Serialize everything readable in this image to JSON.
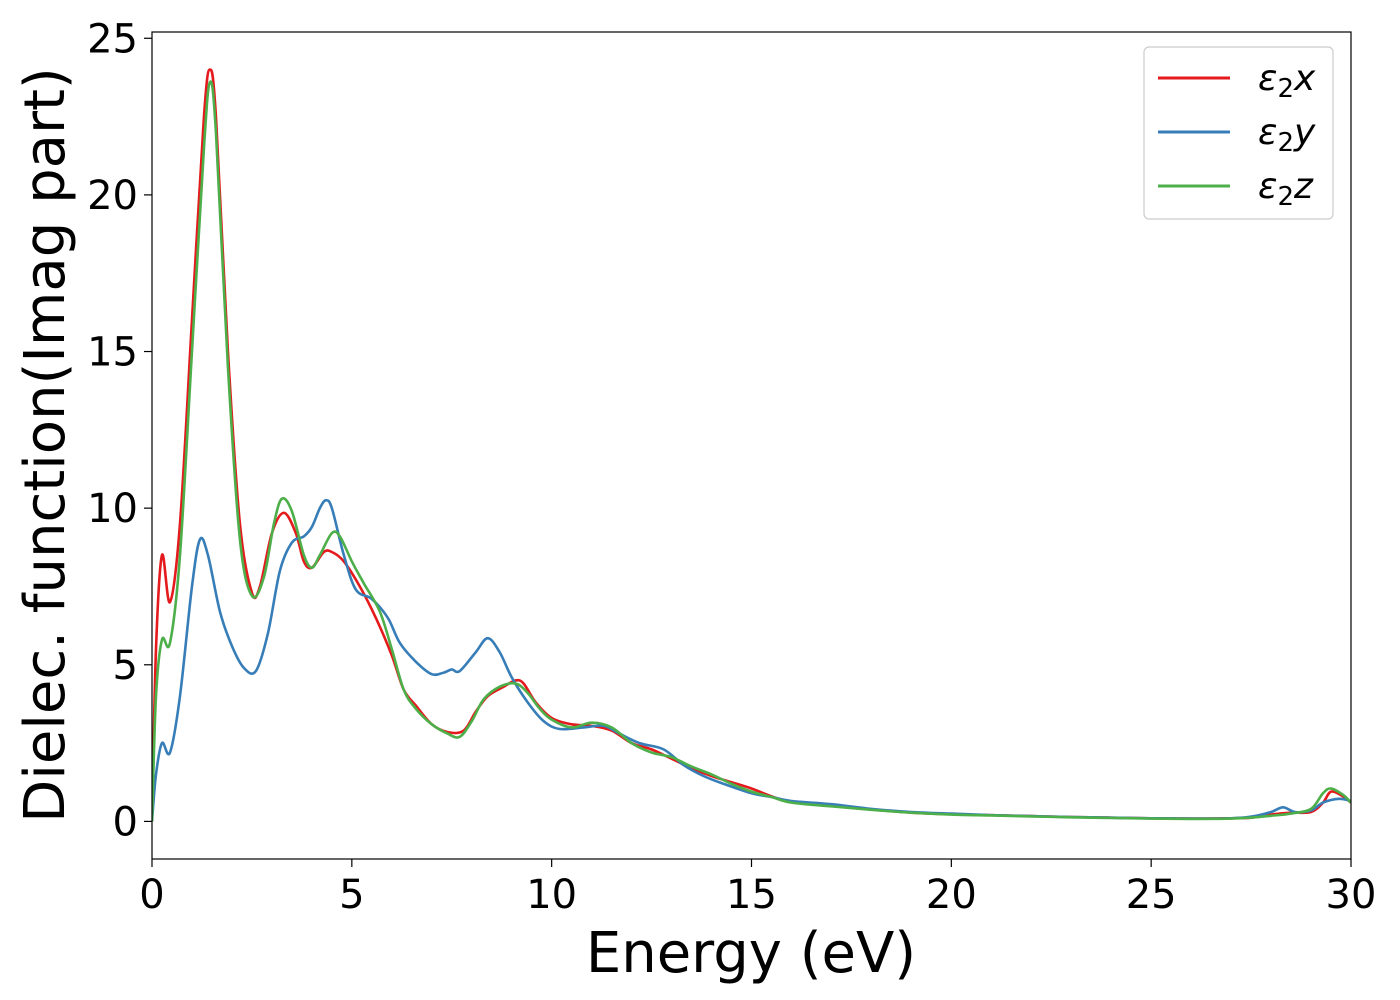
{
  "chart_data": {
    "type": "line",
    "xlabel": "Energy (eV)",
    "ylabel": "Dielec. function(Imag part)",
    "xlim": [
      0,
      30
    ],
    "ylim": [
      -1.2,
      25.2
    ],
    "xticks": [
      "0",
      "5",
      "10",
      "15",
      "20",
      "25",
      "30"
    ],
    "yticks": [
      "0",
      "5",
      "10",
      "15",
      "20",
      "25"
    ],
    "grid": false,
    "legend_position": "top-right",
    "series": [
      {
        "name": "ε₂x",
        "legend_base": "ε",
        "legend_sub": "2",
        "legend_var": "x",
        "color": "#e41a1c",
        "points": [
          [
            0,
            0
          ],
          [
            0.1,
            5.5
          ],
          [
            0.25,
            8.5
          ],
          [
            0.45,
            7.0
          ],
          [
            0.7,
            9.5
          ],
          [
            1.0,
            16
          ],
          [
            1.3,
            22.5
          ],
          [
            1.45,
            24.0
          ],
          [
            1.6,
            22.5
          ],
          [
            1.9,
            15
          ],
          [
            2.2,
            9.5
          ],
          [
            2.5,
            7.3
          ],
          [
            2.7,
            7.5
          ],
          [
            3.0,
            9.2
          ],
          [
            3.3,
            9.85
          ],
          [
            3.6,
            9.2
          ],
          [
            3.8,
            8.3
          ],
          [
            4.0,
            8.1
          ],
          [
            4.3,
            8.6
          ],
          [
            4.5,
            8.6
          ],
          [
            4.8,
            8.3
          ],
          [
            5.2,
            7.5
          ],
          [
            5.6,
            6.5
          ],
          [
            6.0,
            5.3
          ],
          [
            6.3,
            4.2
          ],
          [
            6.6,
            3.7
          ],
          [
            7.0,
            3.1
          ],
          [
            7.4,
            2.85
          ],
          [
            7.8,
            2.9
          ],
          [
            8.1,
            3.5
          ],
          [
            8.4,
            4.0
          ],
          [
            8.8,
            4.3
          ],
          [
            9.1,
            4.5
          ],
          [
            9.3,
            4.4
          ],
          [
            9.6,
            3.8
          ],
          [
            10.0,
            3.3
          ],
          [
            10.5,
            3.1
          ],
          [
            11.0,
            3.05
          ],
          [
            11.5,
            2.9
          ],
          [
            12.0,
            2.5
          ],
          [
            12.5,
            2.3
          ],
          [
            13.0,
            2.0
          ],
          [
            13.5,
            1.7
          ],
          [
            14.0,
            1.45
          ],
          [
            14.5,
            1.25
          ],
          [
            15.0,
            1.05
          ],
          [
            15.5,
            0.8
          ],
          [
            16,
            0.62
          ],
          [
            17,
            0.5
          ],
          [
            18,
            0.38
          ],
          [
            19,
            0.28
          ],
          [
            20,
            0.23
          ],
          [
            21,
            0.2
          ],
          [
            22,
            0.17
          ],
          [
            23,
            0.14
          ],
          [
            24,
            0.12
          ],
          [
            25,
            0.1
          ],
          [
            26,
            0.09
          ],
          [
            27,
            0.1
          ],
          [
            27.5,
            0.12
          ],
          [
            28,
            0.22
          ],
          [
            28.5,
            0.28
          ],
          [
            29,
            0.3
          ],
          [
            29.3,
            0.6
          ],
          [
            29.5,
            0.95
          ],
          [
            29.8,
            0.8
          ],
          [
            30,
            0.6
          ]
        ]
      },
      {
        "name": "ε₂y",
        "legend_base": "ε",
        "legend_sub": "2",
        "legend_var": "y",
        "color": "#377eb8",
        "points": [
          [
            0,
            0
          ],
          [
            0.1,
            1.5
          ],
          [
            0.25,
            2.5
          ],
          [
            0.45,
            2.2
          ],
          [
            0.7,
            4.0
          ],
          [
            1.0,
            7.5
          ],
          [
            1.2,
            9.0
          ],
          [
            1.4,
            8.5
          ],
          [
            1.7,
            6.7
          ],
          [
            2.0,
            5.6
          ],
          [
            2.3,
            4.9
          ],
          [
            2.6,
            4.8
          ],
          [
            2.9,
            6.0
          ],
          [
            3.2,
            8.0
          ],
          [
            3.5,
            8.9
          ],
          [
            3.8,
            9.1
          ],
          [
            4.0,
            9.4
          ],
          [
            4.2,
            10.0
          ],
          [
            4.35,
            10.25
          ],
          [
            4.5,
            10.0
          ],
          [
            4.8,
            8.5
          ],
          [
            5.1,
            7.4
          ],
          [
            5.5,
            7.1
          ],
          [
            5.9,
            6.5
          ],
          [
            6.2,
            5.7
          ],
          [
            6.6,
            5.1
          ],
          [
            7.0,
            4.7
          ],
          [
            7.3,
            4.75
          ],
          [
            7.5,
            4.85
          ],
          [
            7.7,
            4.8
          ],
          [
            8.1,
            5.4
          ],
          [
            8.4,
            5.85
          ],
          [
            8.7,
            5.4
          ],
          [
            9.0,
            4.6
          ],
          [
            9.4,
            3.8
          ],
          [
            9.8,
            3.2
          ],
          [
            10.2,
            2.95
          ],
          [
            10.8,
            3.0
          ],
          [
            11.3,
            3.05
          ],
          [
            11.7,
            2.8
          ],
          [
            12.2,
            2.5
          ],
          [
            12.8,
            2.3
          ],
          [
            13.3,
            1.8
          ],
          [
            13.8,
            1.45
          ],
          [
            14.3,
            1.2
          ],
          [
            15.0,
            0.9
          ],
          [
            15.5,
            0.78
          ],
          [
            16,
            0.65
          ],
          [
            17,
            0.55
          ],
          [
            18,
            0.4
          ],
          [
            19,
            0.3
          ],
          [
            20,
            0.25
          ],
          [
            21,
            0.2
          ],
          [
            22,
            0.17
          ],
          [
            23,
            0.14
          ],
          [
            24,
            0.12
          ],
          [
            25,
            0.1
          ],
          [
            26,
            0.09
          ],
          [
            27,
            0.1
          ],
          [
            27.5,
            0.15
          ],
          [
            28.0,
            0.3
          ],
          [
            28.3,
            0.45
          ],
          [
            28.6,
            0.3
          ],
          [
            29.0,
            0.35
          ],
          [
            29.3,
            0.6
          ],
          [
            29.7,
            0.72
          ],
          [
            30,
            0.65
          ]
        ]
      },
      {
        "name": "ε₂z",
        "legend_base": "ε",
        "legend_sub": "2",
        "legend_var": "z",
        "color": "#4daf4a",
        "points": [
          [
            0,
            0
          ],
          [
            0.1,
            4.0
          ],
          [
            0.25,
            5.8
          ],
          [
            0.45,
            5.7
          ],
          [
            0.7,
            8.5
          ],
          [
            1.0,
            15
          ],
          [
            1.3,
            21.5
          ],
          [
            1.45,
            23.6
          ],
          [
            1.6,
            22.0
          ],
          [
            1.9,
            14.5
          ],
          [
            2.2,
            9.0
          ],
          [
            2.5,
            7.2
          ],
          [
            2.8,
            7.8
          ],
          [
            3.05,
            9.5
          ],
          [
            3.25,
            10.3
          ],
          [
            3.5,
            9.9
          ],
          [
            3.8,
            8.5
          ],
          [
            4.0,
            8.1
          ],
          [
            4.2,
            8.5
          ],
          [
            4.5,
            9.2
          ],
          [
            4.7,
            9.1
          ],
          [
            5.0,
            8.3
          ],
          [
            5.3,
            7.6
          ],
          [
            5.7,
            6.7
          ],
          [
            6.0,
            5.5
          ],
          [
            6.3,
            4.2
          ],
          [
            6.6,
            3.6
          ],
          [
            7.0,
            3.1
          ],
          [
            7.4,
            2.8
          ],
          [
            7.7,
            2.7
          ],
          [
            8.0,
            3.2
          ],
          [
            8.3,
            3.9
          ],
          [
            8.7,
            4.3
          ],
          [
            9.1,
            4.4
          ],
          [
            9.4,
            4.1
          ],
          [
            9.7,
            3.6
          ],
          [
            10.0,
            3.25
          ],
          [
            10.5,
            3.0
          ],
          [
            11.0,
            3.15
          ],
          [
            11.5,
            3.0
          ],
          [
            12.0,
            2.5
          ],
          [
            12.5,
            2.2
          ],
          [
            13.0,
            2.05
          ],
          [
            13.5,
            1.75
          ],
          [
            14.0,
            1.5
          ],
          [
            14.5,
            1.2
          ],
          [
            15.0,
            0.95
          ],
          [
            15.5,
            0.78
          ],
          [
            16,
            0.6
          ],
          [
            17,
            0.48
          ],
          [
            18,
            0.37
          ],
          [
            19,
            0.28
          ],
          [
            20,
            0.22
          ],
          [
            21,
            0.19
          ],
          [
            22,
            0.16
          ],
          [
            23,
            0.13
          ],
          [
            24,
            0.11
          ],
          [
            25,
            0.09
          ],
          [
            26,
            0.08
          ],
          [
            27,
            0.09
          ],
          [
            27.5,
            0.12
          ],
          [
            28,
            0.18
          ],
          [
            28.5,
            0.25
          ],
          [
            29.0,
            0.4
          ],
          [
            29.3,
            0.9
          ],
          [
            29.5,
            1.05
          ],
          [
            29.8,
            0.85
          ],
          [
            30,
            0.6
          ]
        ]
      }
    ]
  }
}
